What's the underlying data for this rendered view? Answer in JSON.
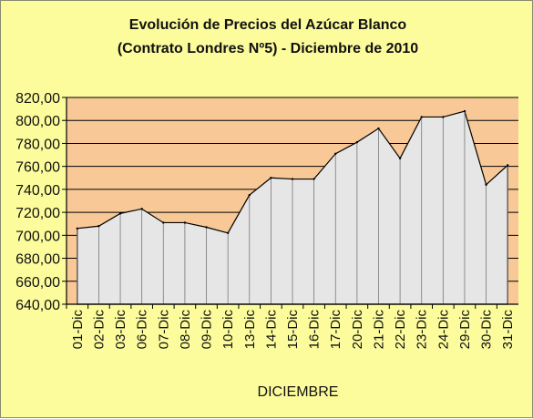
{
  "chart": {
    "title_line1": "Evolución de Precios del Azúcar Blanco",
    "title_line2": "(Contrato Londres Nº5) - Diciembre de 2010",
    "xlabel": "DICIEMBRE"
  },
  "colors": {
    "background": "#fcfc9c",
    "plot_area": "#f8c896",
    "area_fill": "#e6e6e6",
    "area_stroke": "#000000",
    "gridline": "#000000"
  },
  "chart_data": {
    "type": "area",
    "title": "Evolución de Precios del Azúcar Blanco (Contrato Londres Nº5) - Diciembre de 2010",
    "xlabel": "DICIEMBRE",
    "ylabel": "",
    "ylim": [
      640,
      820
    ],
    "y_ticks": [
      "640,00",
      "660,00",
      "680,00",
      "700,00",
      "720,00",
      "740,00",
      "760,00",
      "780,00",
      "800,00",
      "820,00"
    ],
    "grid": true,
    "legend": "none",
    "categories": [
      "01-Dic",
      "02-Dic",
      "03-Dic",
      "06-Dic",
      "07-Dic",
      "08-Dic",
      "09-Dic",
      "10-Dic",
      "13-Dic",
      "14-Dic",
      "15-Dic",
      "16-Dic",
      "17-Dic",
      "20-Dic",
      "21-Dic",
      "22-Dic",
      "23-Dic",
      "24-Dic",
      "29-Dic",
      "30-Dic",
      "31-Dic"
    ],
    "values": [
      706,
      708,
      719,
      723,
      711,
      711,
      707,
      702,
      735,
      750,
      749,
      749,
      771,
      781,
      793,
      767,
      803,
      803,
      808,
      744,
      761
    ]
  }
}
